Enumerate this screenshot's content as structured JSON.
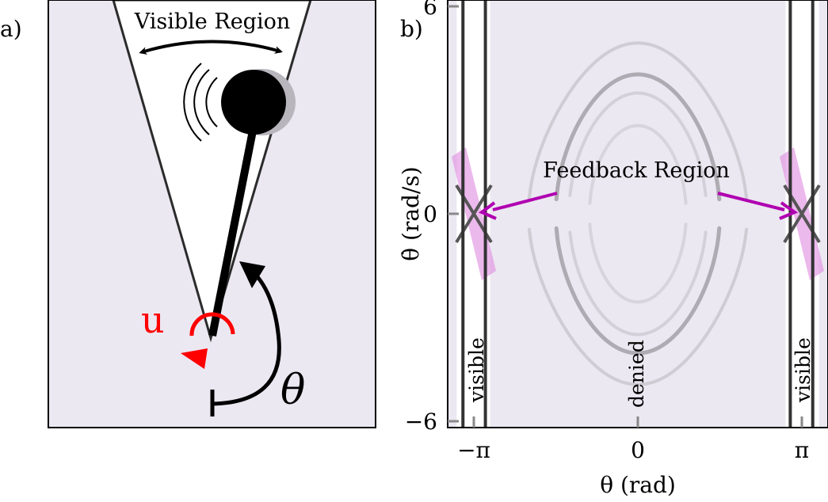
{
  "panel_a": {
    "label": "a)",
    "visible_region_label": "Visible Region",
    "control_label": "u",
    "angle_label": "θ",
    "colors": {
      "background": "#ebe8f2",
      "visible_region": "#ffffff",
      "control": "#ff0000",
      "pendulum": "#000000",
      "ghost_bob": "#b8b5bd"
    }
  },
  "panel_b": {
    "label": "b)",
    "feedback_label": "Feedback Region",
    "band_labels": {
      "left": "visible",
      "center": "denied",
      "right": "visible"
    },
    "colors": {
      "background": "#ebe8f2",
      "visible_band": "#ffffff",
      "feedback": "#e08be0",
      "arrow": "#b000b0",
      "contour": "#9a979c"
    }
  },
  "chart_data": {
    "type": "line",
    "title": "",
    "xlabel": "θ (rad)",
    "ylabel": "θ̇ (rad/s)",
    "xlim": [
      -3.35,
      3.35
    ],
    "ylim": [
      -6,
      6
    ],
    "x_ticks": [
      {
        "value": -3.14159,
        "label": "−π"
      },
      {
        "value": 0,
        "label": "0"
      },
      {
        "value": 3.14159,
        "label": "π"
      }
    ],
    "y_ticks": [
      {
        "value": -6,
        "label": "−6"
      },
      {
        "value": 0,
        "label": "0"
      },
      {
        "value": 6,
        "label": "6"
      }
    ],
    "visible_intervals": [
      [
        -3.47,
        -2.83
      ],
      [
        2.83,
        3.47
      ]
    ],
    "separatrix_energy": 1.0,
    "contour_energies": [
      0.4,
      0.75,
      1.0,
      1.5
    ],
    "grid": false
  }
}
